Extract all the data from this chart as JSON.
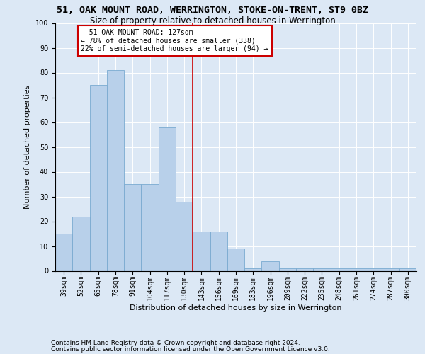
{
  "title": "51, OAK MOUNT ROAD, WERRINGTON, STOKE-ON-TRENT, ST9 0BZ",
  "subtitle": "Size of property relative to detached houses in Werrington",
  "xlabel": "Distribution of detached houses by size in Werrington",
  "ylabel": "Number of detached properties",
  "categories": [
    "39sqm",
    "52sqm",
    "65sqm",
    "78sqm",
    "91sqm",
    "104sqm",
    "117sqm",
    "130sqm",
    "143sqm",
    "156sqm",
    "169sqm",
    "183sqm",
    "196sqm",
    "209sqm",
    "222sqm",
    "235sqm",
    "248sqm",
    "261sqm",
    "274sqm",
    "287sqm",
    "300sqm"
  ],
  "values": [
    15,
    22,
    75,
    81,
    35,
    35,
    58,
    28,
    16,
    16,
    9,
    1,
    4,
    1,
    1,
    1,
    1,
    1,
    1,
    1,
    1
  ],
  "bar_color": "#b8d0ea",
  "bar_edge_color": "#7aaad0",
  "vline_x": 7.5,
  "vline_color": "#cc0000",
  "annotation_text": "  51 OAK MOUNT ROAD: 127sqm\n← 78% of detached houses are smaller (338)\n22% of semi-detached houses are larger (94) →",
  "annotation_box_color": "#ffffff",
  "annotation_box_edge": "#cc0000",
  "background_color": "#dce8f5",
  "plot_background": "#dce8f5",
  "ylim": [
    0,
    100
  ],
  "yticks": [
    0,
    10,
    20,
    30,
    40,
    50,
    60,
    70,
    80,
    90,
    100
  ],
  "footnote1": "Contains HM Land Registry data © Crown copyright and database right 2024.",
  "footnote2": "Contains public sector information licensed under the Open Government Licence v3.0.",
  "title_fontsize": 9.5,
  "subtitle_fontsize": 8.5,
  "xlabel_fontsize": 8,
  "ylabel_fontsize": 8,
  "tick_fontsize": 7,
  "footnote_fontsize": 6.5
}
